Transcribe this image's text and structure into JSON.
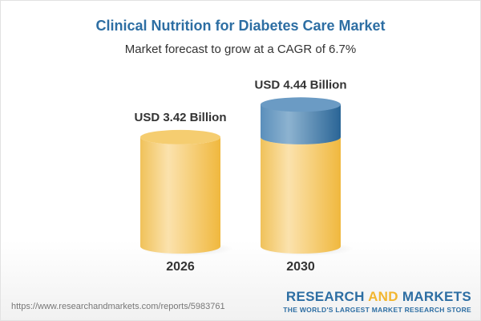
{
  "title": "Clinical Nutrition for Diabetes Care Market",
  "subtitle": "Market forecast to grow at a CAGR of 6.7%",
  "chart_data": {
    "type": "bar",
    "style": "3d-cylinder",
    "categories": [
      "2026",
      "2030"
    ],
    "values": [
      3.42,
      4.44
    ],
    "data_labels": [
      "USD 3.42 Billion",
      "USD 4.44 Billion"
    ],
    "unit": "USD Billion",
    "highlight_growth": true,
    "colors": {
      "base": "#f2c45c",
      "growth": "#4a86b5"
    }
  },
  "footer": {
    "url": "https://www.researchandmarkets.com/reports/5983761",
    "logo_part1": "RESEARCH ",
    "logo_part2": "AND",
    "logo_part3": " MARKETS",
    "tagline": "THE WORLD'S LARGEST MARKET RESEARCH STORE"
  }
}
